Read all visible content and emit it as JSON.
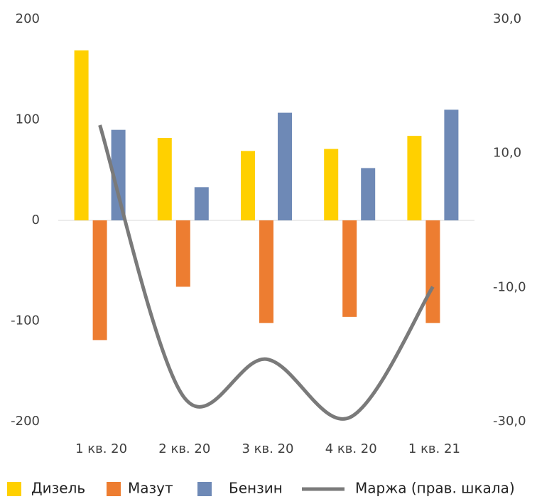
{
  "chart_data": {
    "type": "bar",
    "categories": [
      "1 кв. 20",
      "2 кв. 20",
      "3 кв. 20",
      "4 кв. 20",
      "1 кв. 21"
    ],
    "series": [
      {
        "name": "Дизель",
        "color": "#FFD000",
        "values": [
          169,
          82,
          69,
          71,
          84
        ]
      },
      {
        "name": "Мазут",
        "color": "#ED7D31",
        "values": [
          -119,
          -66,
          -102,
          -96,
          -102
        ]
      },
      {
        "name": "Бензин",
        "color": "#6E89B6",
        "values": [
          90,
          33,
          107,
          52,
          110
        ]
      },
      {
        "name": "Маржа (прав. шкала)",
        "type": "line",
        "axis": "y2",
        "color": "#7A7A7A",
        "values": [
          14.2,
          -26.2,
          -20.7,
          -29.4,
          -9.9
        ]
      }
    ],
    "ylim": [
      -200,
      200
    ],
    "yticks": [
      -200,
      -100,
      0,
      100,
      200
    ],
    "y2lim": [
      -30,
      30
    ],
    "y2ticks": [
      {
        "value": -30,
        "label": "-30,0"
      },
      {
        "value": -10,
        "label": "-10,0"
      },
      {
        "value": 10,
        "label": "10,0"
      },
      {
        "value": 30,
        "label": "30,0"
      }
    ],
    "legend": "bottom"
  }
}
